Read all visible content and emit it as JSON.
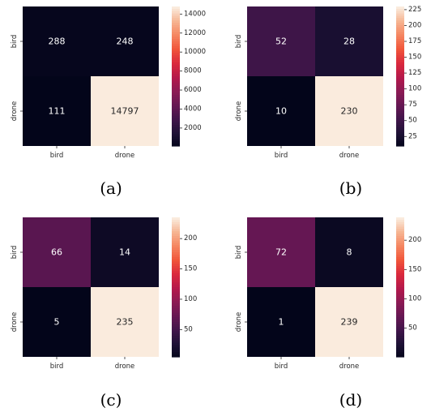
{
  "chart_data": [
    {
      "type": "heatmap",
      "caption": "(a)",
      "x_categories": [
        "bird",
        "drone"
      ],
      "y_categories": [
        "bird",
        "drone"
      ],
      "values": [
        [
          288,
          248
        ],
        [
          111,
          14797
        ]
      ],
      "colorbar": {
        "range": [
          111,
          14797
        ],
        "ticks": [
          2000,
          4000,
          6000,
          8000,
          10000,
          12000,
          14000
        ]
      },
      "colormap": "rocket"
    },
    {
      "type": "heatmap",
      "caption": "(b)",
      "x_categories": [
        "bird",
        "drone"
      ],
      "y_categories": [
        "bird",
        "drone"
      ],
      "values": [
        [
          52,
          28
        ],
        [
          10,
          230
        ]
      ],
      "colorbar": {
        "range": [
          10,
          230
        ],
        "ticks": [
          25,
          50,
          75,
          100,
          125,
          150,
          175,
          200,
          225
        ]
      },
      "colormap": "rocket"
    },
    {
      "type": "heatmap",
      "caption": "(c)",
      "x_categories": [
        "bird",
        "drone"
      ],
      "y_categories": [
        "bird",
        "drone"
      ],
      "values": [
        [
          66,
          14
        ],
        [
          5,
          235
        ]
      ],
      "colorbar": {
        "range": [
          5,
          235
        ],
        "ticks": [
          50,
          100,
          150,
          200
        ]
      },
      "colormap": "rocket"
    },
    {
      "type": "heatmap",
      "caption": "(d)",
      "x_categories": [
        "bird",
        "drone"
      ],
      "y_categories": [
        "bird",
        "drone"
      ],
      "values": [
        [
          72,
          8
        ],
        [
          1,
          239
        ]
      ],
      "colorbar": {
        "range": [
          1,
          239
        ],
        "ticks": [
          50,
          100,
          150,
          200
        ]
      },
      "colormap": "rocket"
    }
  ]
}
